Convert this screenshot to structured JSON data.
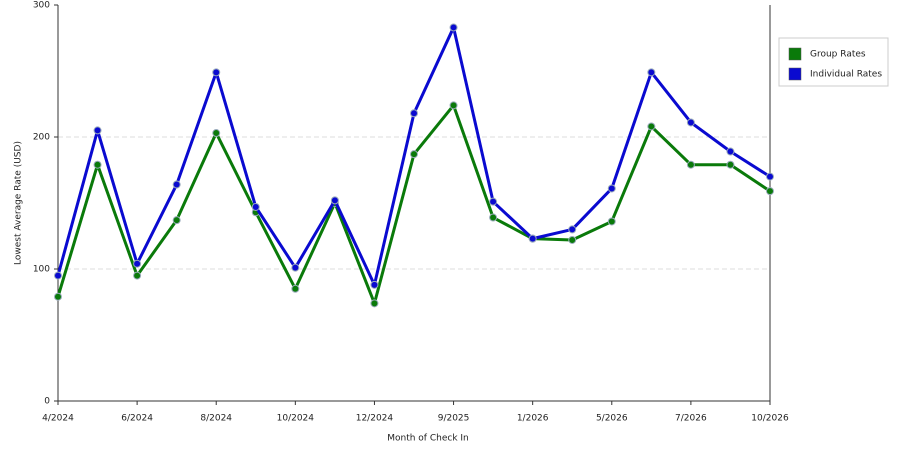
{
  "chart_data": {
    "type": "line",
    "x_label": "Month of Check In",
    "y_label": "Lowest Average Rate (USD)",
    "categories": [
      "4/2024",
      null,
      "6/2024",
      null,
      "8/2024",
      null,
      "10/2024",
      null,
      "12/2024",
      null,
      "9/2025",
      null,
      "1/2026",
      null,
      "5/2026",
      null,
      "7/2026",
      null,
      "10/2026"
    ],
    "series": [
      {
        "name": "Group Rates",
        "color": "#0a7a0a",
        "values": [
          79,
          179,
          95,
          137,
          203,
          143,
          85,
          150,
          74,
          187,
          224,
          139,
          123,
          122,
          136,
          208,
          179,
          179,
          159
        ]
      },
      {
        "name": "Individual Rates",
        "color": "#0a0ad0",
        "values": [
          95,
          205,
          104,
          164,
          249,
          147,
          101,
          152,
          88,
          218,
          283,
          151,
          123,
          130,
          161,
          249,
          211,
          189,
          170
        ]
      }
    ],
    "ylim": [
      0,
      300
    ],
    "yticks": [
      0,
      100,
      200,
      300
    ],
    "grid": true,
    "legend": "top-right"
  }
}
